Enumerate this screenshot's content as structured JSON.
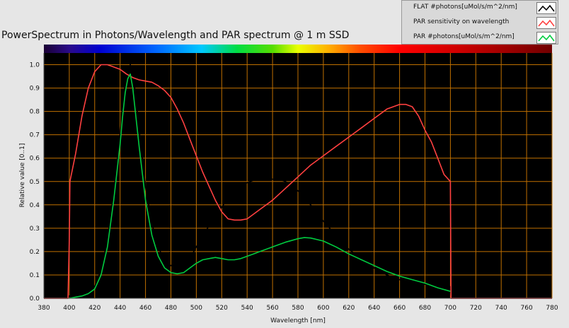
{
  "chart_data": {
    "type": "line",
    "title": "PowerSpectrum in Photons/Wavelength and PAR spectrum @ 1 m SSD",
    "xlabel": "Wavelength [nm]",
    "ylabel": "Relative value [0..1]",
    "xlim": [
      380,
      780
    ],
    "ylim": [
      0,
      1.05
    ],
    "xticks": [
      380,
      400,
      420,
      440,
      460,
      480,
      500,
      520,
      540,
      560,
      580,
      600,
      620,
      640,
      660,
      680,
      700,
      720,
      740,
      760,
      780
    ],
    "yticks": [
      0.0,
      0.1,
      0.2,
      0.3,
      0.4,
      0.5,
      0.6,
      0.7,
      0.8,
      0.9,
      1.0
    ],
    "grid": true,
    "legend_position": "top-right",
    "plot_background": "#000000",
    "grid_color": "#c07000",
    "spectrum_bar": true,
    "series": [
      {
        "name": "FLAT #photons[uMol/s/m^2/nm]",
        "color": "#000000",
        "x": [
          380,
          399,
          400,
          405,
          410,
          415,
          420,
          425,
          430,
          435,
          440,
          442,
          444,
          446,
          448,
          450,
          452,
          455,
          460,
          465,
          470,
          475,
          480,
          485,
          490,
          495,
          500,
          505,
          510,
          515,
          520,
          525,
          530,
          535,
          540,
          545,
          550,
          555,
          560,
          565,
          570,
          575,
          580,
          585,
          590,
          595,
          600,
          610,
          620,
          630,
          640,
          650,
          660,
          670,
          680,
          690,
          700,
          700.5,
          780
        ],
        "y": [
          0,
          0,
          0.01,
          0.01,
          0.015,
          0.025,
          0.05,
          0.12,
          0.25,
          0.45,
          0.7,
          0.82,
          0.92,
          0.98,
          1.0,
          0.96,
          0.88,
          0.72,
          0.48,
          0.32,
          0.22,
          0.16,
          0.14,
          0.135,
          0.14,
          0.17,
          0.22,
          0.27,
          0.31,
          0.35,
          0.39,
          0.43,
          0.46,
          0.48,
          0.495,
          0.505,
          0.51,
          0.515,
          0.51,
          0.51,
          0.5,
          0.485,
          0.46,
          0.43,
          0.4,
          0.37,
          0.33,
          0.27,
          0.21,
          0.17,
          0.13,
          0.1,
          0.08,
          0.065,
          0.06,
          0.055,
          0.05,
          0,
          0
        ]
      },
      {
        "name": "PAR sensitivity on wavelength",
        "color": "#ff4040",
        "x": [
          380,
          399,
          400,
          400.5,
          405,
          410,
          415,
          420,
          425,
          430,
          435,
          440,
          445,
          450,
          455,
          460,
          465,
          470,
          475,
          480,
          485,
          490,
          495,
          500,
          505,
          510,
          515,
          520,
          525,
          530,
          535,
          540,
          545,
          550,
          560,
          570,
          580,
          590,
          600,
          610,
          620,
          630,
          640,
          650,
          660,
          665,
          670,
          675,
          680,
          685,
          690,
          695,
          700,
          700.5,
          780
        ],
        "y": [
          0,
          0,
          0.25,
          0.5,
          0.62,
          0.78,
          0.9,
          0.97,
          1.0,
          1.0,
          0.99,
          0.98,
          0.96,
          0.945,
          0.935,
          0.93,
          0.925,
          0.91,
          0.89,
          0.86,
          0.81,
          0.75,
          0.68,
          0.61,
          0.54,
          0.48,
          0.42,
          0.37,
          0.34,
          0.335,
          0.335,
          0.34,
          0.36,
          0.38,
          0.42,
          0.47,
          0.52,
          0.57,
          0.61,
          0.65,
          0.69,
          0.73,
          0.77,
          0.81,
          0.83,
          0.83,
          0.82,
          0.78,
          0.72,
          0.67,
          0.6,
          0.53,
          0.5,
          0,
          0
        ]
      },
      {
        "name": "PAR #photons[uMol/s/m^2/nm]",
        "color": "#00cc40",
        "x": [
          400,
          405,
          410,
          415,
          420,
          425,
          430,
          435,
          440,
          442,
          444,
          446,
          448,
          450,
          452,
          455,
          460,
          465,
          470,
          475,
          480,
          485,
          490,
          495,
          500,
          505,
          510,
          515,
          520,
          525,
          530,
          535,
          540,
          545,
          550,
          560,
          570,
          580,
          585,
          590,
          600,
          610,
          620,
          630,
          640,
          650,
          660,
          670,
          680,
          690,
          700
        ],
        "y": [
          0.0,
          0.005,
          0.01,
          0.02,
          0.04,
          0.1,
          0.22,
          0.42,
          0.66,
          0.78,
          0.88,
          0.94,
          0.96,
          0.9,
          0.8,
          0.65,
          0.42,
          0.27,
          0.18,
          0.13,
          0.11,
          0.105,
          0.11,
          0.13,
          0.15,
          0.165,
          0.17,
          0.175,
          0.17,
          0.165,
          0.165,
          0.17,
          0.18,
          0.19,
          0.2,
          0.22,
          0.24,
          0.255,
          0.26,
          0.258,
          0.245,
          0.22,
          0.19,
          0.165,
          0.14,
          0.115,
          0.095,
          0.08,
          0.065,
          0.045,
          0.03
        ]
      }
    ]
  }
}
